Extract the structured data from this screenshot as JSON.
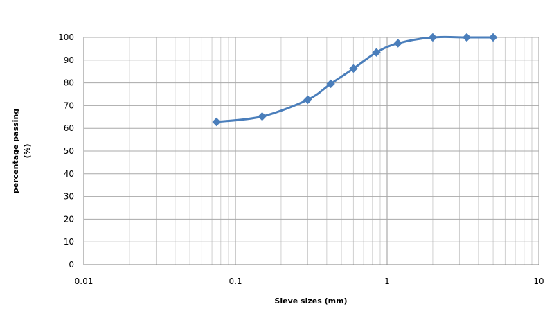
{
  "chart_data": {
    "type": "line",
    "title": "",
    "xlabel": "Sieve sizes (mm)",
    "ylabel_lines": [
      "percentage passing",
      "(%)"
    ],
    "x_scale": "log",
    "xlim": [
      0.01,
      10
    ],
    "ylim": [
      0,
      100
    ],
    "x_ticks": [
      "0.01",
      "0.1",
      "1",
      "10"
    ],
    "y_ticks": [
      "0",
      "10",
      "20",
      "30",
      "40",
      "50",
      "60",
      "70",
      "80",
      "90",
      "100"
    ],
    "grid": true,
    "legend": "none",
    "series": [
      {
        "color": "#4a7ebb",
        "x": [
          0.075,
          0.15,
          0.3,
          0.425,
          0.6,
          0.85,
          1.18,
          2.0,
          3.35,
          5.0
        ],
        "y": [
          62.8,
          65.2,
          72.6,
          79.6,
          86.3,
          93.4,
          97.4,
          100,
          100,
          100
        ]
      }
    ]
  }
}
